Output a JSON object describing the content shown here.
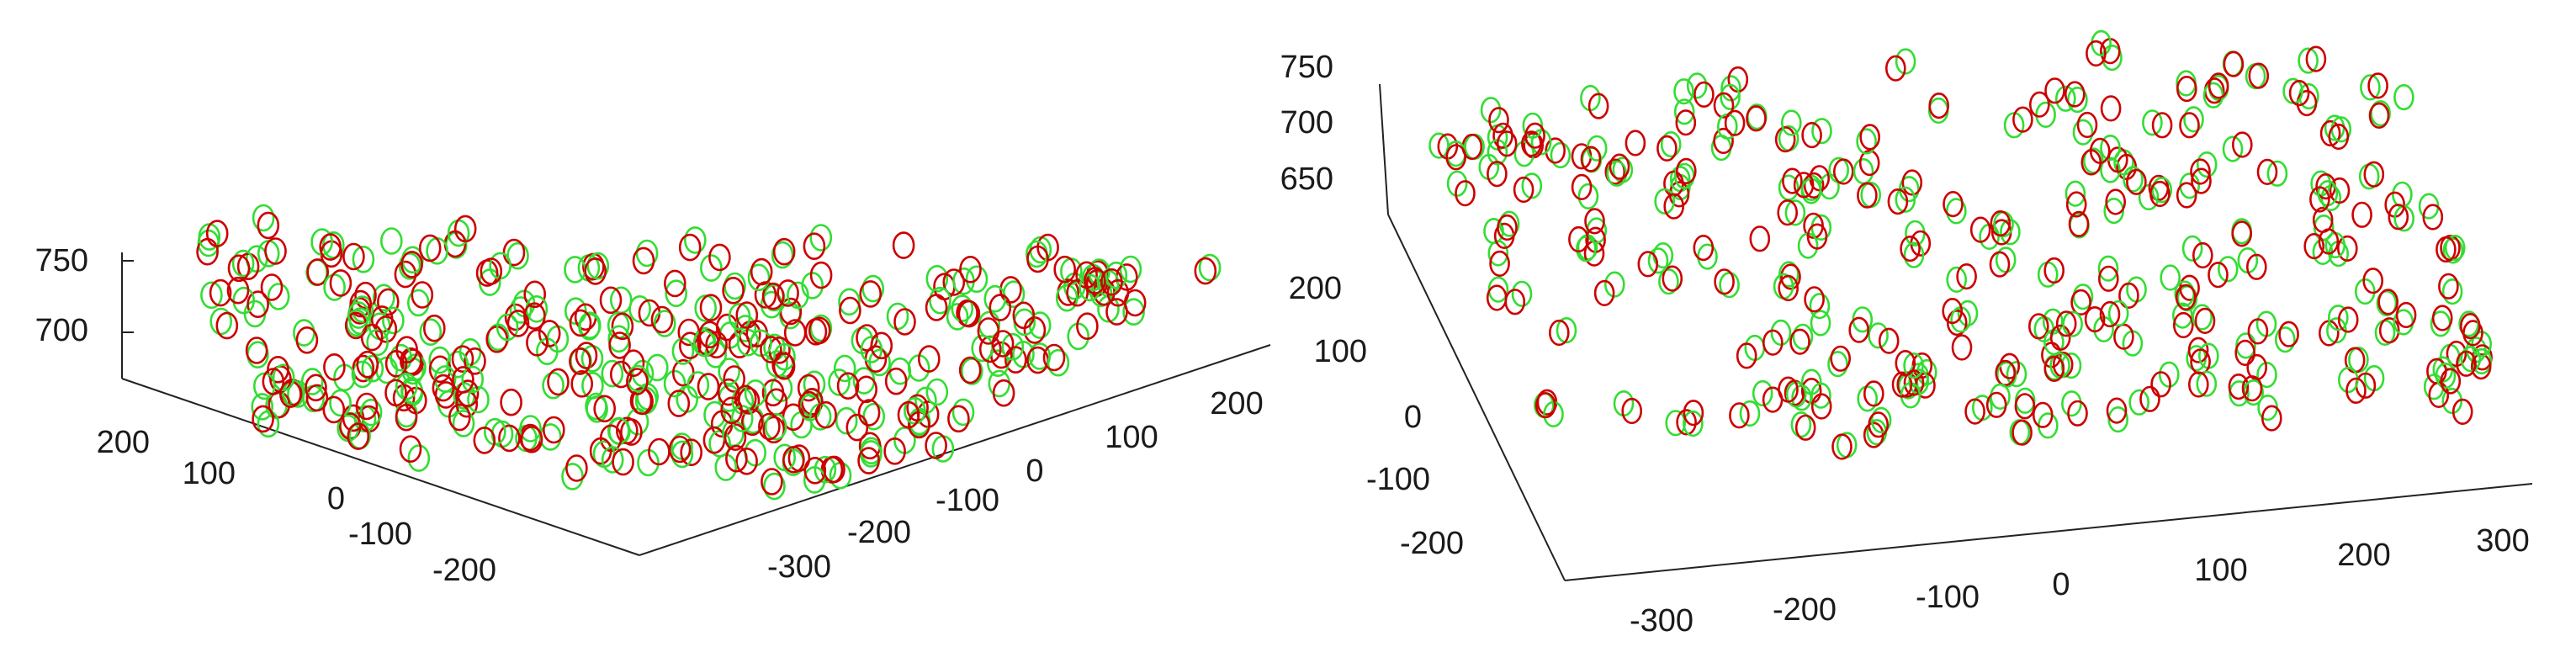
{
  "chart_data": [
    {
      "type": "scatter",
      "title": "",
      "xlabel": "",
      "ylabel": "",
      "zlabel": "",
      "view": "3d",
      "grid": false,
      "legend": "none",
      "colors": {
        "set_a": "#cc0000",
        "set_b": "#33dd33"
      },
      "xlim": [
        -300,
        300
      ],
      "ylim": [
        -250,
        250
      ],
      "zlim": [
        680,
        760
      ],
      "x_ticks": [
        "-300",
        "-200",
        "-100",
        "0",
        "100",
        "200"
      ],
      "y_ticks": [
        "-200",
        "-100",
        "0",
        "100",
        "200"
      ],
      "z_ticks": [
        "700",
        "750"
      ],
      "point_count_per_series": 240,
      "series_seed": 17
    },
    {
      "type": "scatter",
      "title": "",
      "xlabel": "",
      "ylabel": "",
      "zlabel": "",
      "view": "3d",
      "grid": false,
      "legend": "none",
      "colors": {
        "set_a": "#cc0000",
        "set_b": "#33dd33"
      },
      "xlim": [
        -350,
        350
      ],
      "ylim": [
        -250,
        250
      ],
      "zlim": [
        630,
        760
      ],
      "x_ticks": [
        "-300",
        "-200",
        "-100",
        "0",
        "100",
        "200",
        "300"
      ],
      "y_ticks": [
        "-200",
        "-100",
        "0",
        "100",
        "200"
      ],
      "z_ticks": [
        "650",
        "700",
        "750"
      ],
      "point_count_per_series": 230,
      "series_seed": 41
    }
  ]
}
